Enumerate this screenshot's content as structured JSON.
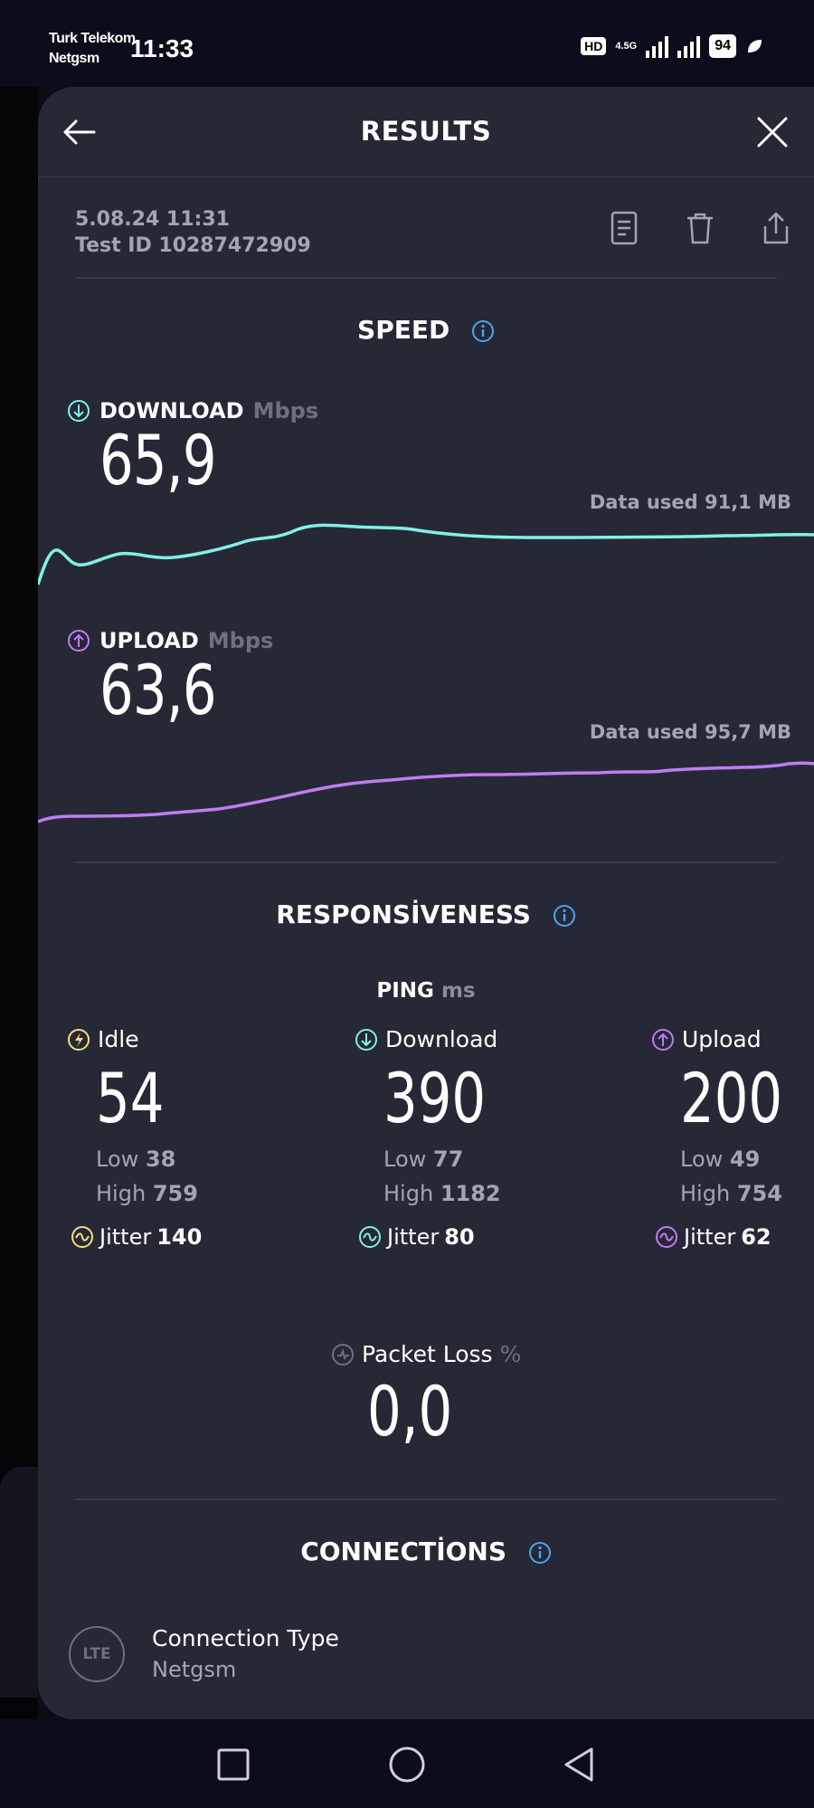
{
  "status_bar": {
    "carrier_line1": "Turk Telekom",
    "carrier_line2": "Netgsm",
    "time": "11:33",
    "hd_label": "HD",
    "network_label": "4.5G",
    "battery": "94"
  },
  "header": {
    "title": "RESULTS",
    "back_icon": "arrow-left-icon",
    "close_icon": "close-icon"
  },
  "test": {
    "date": "5.08.24 11:31",
    "id_line": "Test ID 10287472909"
  },
  "actions": [
    "document-icon",
    "trash-icon",
    "share-icon"
  ],
  "speed": {
    "title": "SPEED",
    "download": {
      "label": "DOWNLOAD",
      "unit": "Mbps",
      "value": "65,9",
      "data_used": "Data used 91,1 MB",
      "color": "#7ef2e6"
    },
    "upload": {
      "label": "UPLOAD",
      "unit": "Mbps",
      "value": "63,6",
      "data_used": "Data used 95,7 MB",
      "color": "#bf7df0"
    }
  },
  "responsiveness": {
    "title": "RESPONSİVENESS",
    "ping_label": "PING",
    "ping_unit": "ms",
    "columns": [
      {
        "label": "Idle",
        "value": "54",
        "low_label": "Low",
        "low": "38",
        "high_label": "High",
        "high": "759",
        "jitter_label": "Jitter",
        "jitter": "140",
        "color": "#f2e07a"
      },
      {
        "label": "Download",
        "value": "390",
        "low_label": "Low",
        "low": "77",
        "high_label": "High",
        "high": "1182",
        "jitter_label": "Jitter",
        "jitter": "80",
        "color": "#7ef2e6"
      },
      {
        "label": "Upload",
        "value": "200",
        "low_label": "Low",
        "low": "49",
        "high_label": "High",
        "high": "754",
        "jitter_label": "Jitter",
        "jitter": "62",
        "color": "#bf7df0"
      }
    ],
    "packet_loss": {
      "label": "Packet Loss",
      "unit": "%",
      "value": "0,0"
    }
  },
  "connections": {
    "title": "CONNECTİONS",
    "type_label": "Connection Type",
    "provider": "Netgsm",
    "badge": "LTE"
  },
  "colors": {
    "background": "#272836",
    "info": "#4aa7f0",
    "muted": "#a3a4b6"
  }
}
